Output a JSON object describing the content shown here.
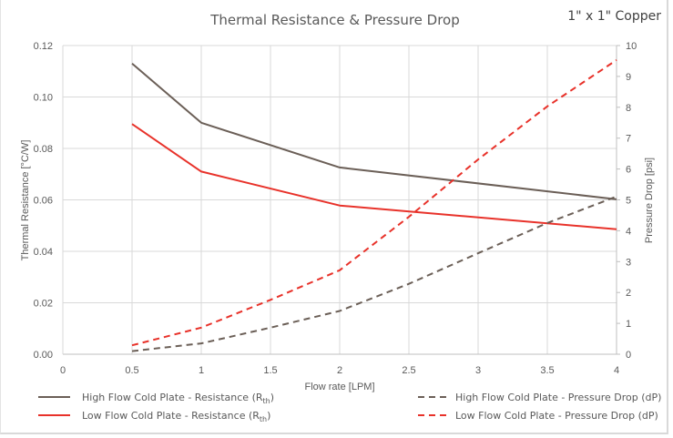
{
  "chart_data": {
    "type": "line",
    "title": "Thermal Resistance & Pressure Drop",
    "annotation": "1\" x 1\" Copper",
    "xlabel": "Flow rate [LPM]",
    "ylabel": "Thermal Resistance [°C/W]",
    "y2label": "Pressure Drop [psi]",
    "xlim": [
      0,
      4
    ],
    "ylim": [
      0,
      0.12
    ],
    "y2lim": [
      0,
      10
    ],
    "grid": true,
    "legend_position": "bottom",
    "x_ticks": [
      "0",
      "0.5",
      "1",
      "1.5",
      "2",
      "2.5",
      "3",
      "3.5",
      "4"
    ],
    "x_tick_values": [
      0,
      0.5,
      1,
      1.5,
      2,
      2.5,
      3,
      3.5,
      4
    ],
    "y_ticks": [
      "0.00",
      "0.02",
      "0.04",
      "0.06",
      "0.08",
      "0.10",
      "0.12"
    ],
    "y_tick_values": [
      0,
      0.02,
      0.04,
      0.06,
      0.08,
      0.1,
      0.12
    ],
    "y2_ticks": [
      "0",
      "1",
      "2",
      "3",
      "4",
      "5",
      "6",
      "7",
      "8",
      "9",
      "10"
    ],
    "y2_tick_values": [
      0,
      1,
      2,
      3,
      4,
      5,
      6,
      7,
      8,
      9,
      10
    ],
    "series": [
      {
        "name": "High Flow Cold Plate - Resistance",
        "legend_main": "High Flow Cold Plate - Resistance (R",
        "legend_sub": "th",
        "legend_end": ")",
        "axis": "left",
        "style": "solid",
        "color": "#6b5f57",
        "x": [
          0.5,
          1,
          2,
          4
        ],
        "values": [
          0.113,
          0.09,
          0.0726,
          0.0602
        ]
      },
      {
        "name": "Low Flow Cold Plate - Resistance",
        "legend_main": "Low Flow Cold Plate - Resistance  (R",
        "legend_sub": "th",
        "legend_end": ")",
        "axis": "left",
        "style": "solid",
        "color": "#e8322a",
        "x": [
          0.5,
          1,
          2,
          4
        ],
        "values": [
          0.0895,
          0.071,
          0.0578,
          0.0486
        ]
      },
      {
        "name": "High Flow Cold Plate - Pressure Drop (dP)",
        "legend_main": "High Flow Cold Plate - Pressure Drop (dP)",
        "axis": "right",
        "style": "dashed",
        "color": "#6b5f57",
        "x": [
          0.5,
          1,
          1.5,
          2,
          2.5,
          3,
          3.5,
          4
        ],
        "values": [
          0.1,
          0.35,
          0.86,
          1.4,
          2.28,
          3.27,
          4.25,
          5.11
        ]
      },
      {
        "name": "Low Flow Cold Plate - Pressure Drop (dP)",
        "legend_main": "Low Flow Cold Plate - Pressure Drop (dP)",
        "axis": "right",
        "style": "dashed",
        "color": "#e8322a",
        "x": [
          0.5,
          1,
          1.5,
          2,
          2.5,
          3,
          3.5,
          4
        ],
        "values": [
          0.29,
          0.86,
          1.76,
          2.72,
          4.45,
          6.31,
          8.03,
          9.53
        ]
      }
    ]
  }
}
